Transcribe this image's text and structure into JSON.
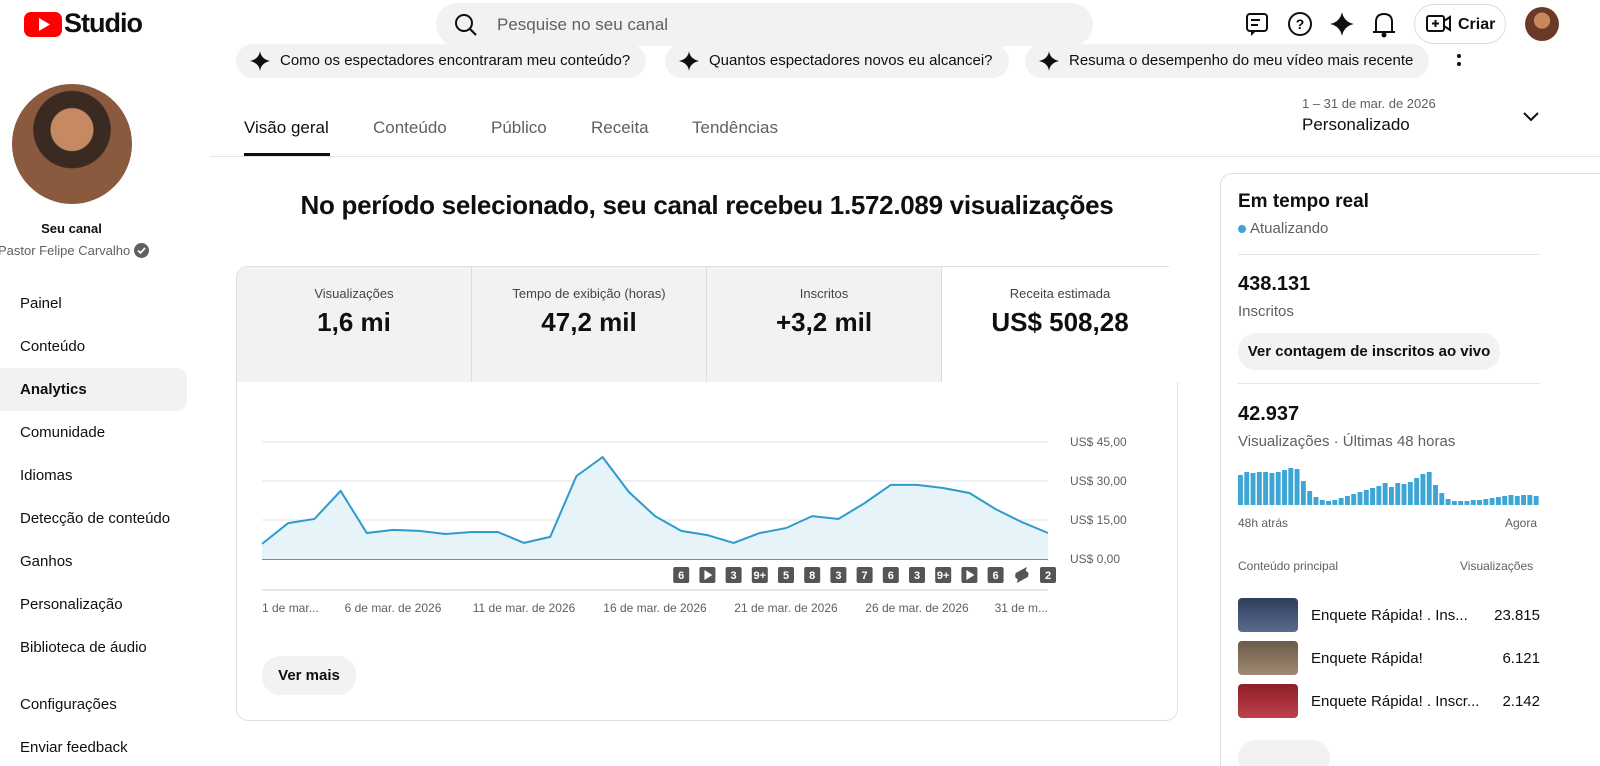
{
  "header": {
    "logo": "Studio",
    "search_placeholder": "Pesquise no seu canal",
    "create": "Criar"
  },
  "suggestions": [
    "Como os espectadores encontraram meu conteúdo?",
    "Quantos espectadores novos eu alcancei?",
    "Resuma o desempenho do meu vídeo mais recente"
  ],
  "sidebar": {
    "channel_label": "Seu canal",
    "channel_name": "Pastor Felipe Carvalho",
    "nav": [
      "Painel",
      "Conteúdo",
      "Analytics",
      "Comunidade",
      "Idiomas",
      "Detecção de conteúdo",
      "Ganhos",
      "Personalização",
      "Biblioteca de áudio"
    ],
    "nav_bottom": [
      "Configurações",
      "Enviar feedback"
    ]
  },
  "tabs": [
    "Visão geral",
    "Conteúdo",
    "Público",
    "Receita",
    "Tendências"
  ],
  "date_range": {
    "range": "1 – 31 de mar. de 2026",
    "label": "Personalizado"
  },
  "headline": "No período selecionado, seu canal recebeu 1.572.089 visualizações",
  "metrics": [
    {
      "label": "Visualizações",
      "value": "1,6 mi"
    },
    {
      "label": "Tempo de exibição (horas)",
      "value": "47,2 mil"
    },
    {
      "label": "Inscritos",
      "value": "+3,2 mil"
    },
    {
      "label": "Receita estimada",
      "value": "US$ 508,28"
    }
  ],
  "chart_data": {
    "type": "line",
    "color": "#2e9bce",
    "categories": [
      "1 de mar...",
      null,
      null,
      null,
      null,
      "6 de mar. de 2026",
      null,
      null,
      null,
      null,
      "11 de mar. de 2026",
      null,
      null,
      null,
      null,
      "16 de mar. de 2026",
      null,
      null,
      null,
      null,
      "21 de mar. de 2026",
      null,
      null,
      null,
      null,
      "26 de mar. de 2026",
      null,
      null,
      null,
      null,
      "31 de m..."
    ],
    "values": [
      5.8,
      13.8,
      15.4,
      26.2,
      10,
      11.2,
      10.8,
      9.6,
      10.4,
      10.4,
      6.2,
      8.5,
      31.9,
      39.2,
      25.8,
      16.5,
      10.8,
      9.2,
      6.2,
      10,
      11.9,
      16.5,
      15.4,
      21.5,
      28.5,
      28.5,
      27.3,
      25.4,
      19.2,
      14.2,
      10
    ],
    "ylim": [
      0,
      45
    ],
    "yticks": [
      {
        "value": 0,
        "label": "US$ 0,00"
      },
      {
        "value": 15,
        "label": "US$ 15,00"
      },
      {
        "value": 30,
        "label": "US$ 30,00"
      },
      {
        "value": 45,
        "label": "US$ 45,00"
      }
    ],
    "grid": true,
    "event_markers": [
      {
        "label": "6"
      },
      {
        "icon": "play"
      },
      {
        "label": "3"
      },
      {
        "label": "9+"
      },
      {
        "label": "5"
      },
      {
        "label": "8"
      },
      {
        "label": "3"
      },
      {
        "label": "7"
      },
      {
        "label": "6"
      },
      {
        "label": "3"
      },
      {
        "label": "9+"
      },
      {
        "icon": "play"
      },
      {
        "label": "6"
      },
      {
        "icon": "shorts"
      },
      {
        "label": "2"
      }
    ]
  },
  "see_more": "Ver mais",
  "realtime": {
    "title": "Em tempo real",
    "status": "Atualizando",
    "subscribers": "438.131",
    "subscribers_label": "Inscritos",
    "live_button": "Ver contagem de inscritos ao vivo",
    "views": "42.937",
    "views_label": "Visualizações · Últimas 48 horas",
    "views_chart": {
      "type": "bar",
      "color": "#3ea6d4",
      "values": [
        30,
        33,
        32,
        33,
        33,
        32,
        33,
        35,
        37,
        36,
        24,
        14,
        8,
        5,
        4,
        5,
        7,
        9,
        11,
        13,
        15,
        17,
        19,
        22,
        18,
        22,
        21,
        23,
        27,
        31,
        33,
        20,
        12,
        6,
        4,
        4,
        4,
        5,
        5,
        6,
        7,
        8,
        9,
        10,
        9,
        10,
        10,
        9
      ],
      "start_label": "48h atrás",
      "end_label": "Agora"
    },
    "top_content": {
      "header": "Conteúdo principal",
      "metric": "Visualizações",
      "rows": [
        {
          "title": "Enquete Rápida! . Ins...",
          "views": "23.815"
        },
        {
          "title": "Enquete Rápida!",
          "views": "6.121"
        },
        {
          "title": "Enquete Rápida! . Inscr...",
          "views": "2.142"
        }
      ]
    }
  }
}
